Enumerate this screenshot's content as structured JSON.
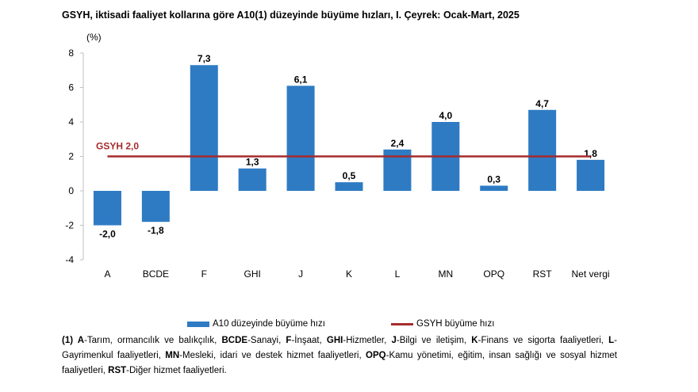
{
  "title": "GSYH, iktisadi faaliyet kollarına göre A10(1) düzeyinde büyüme hızları, I. Çeyrek: Ocak-Mart, 2025",
  "colors": {
    "bar": "#2e7bc4",
    "reference_line": "#a62b2b",
    "axis": "#bfbfbf"
  },
  "chart_data": {
    "type": "bar",
    "ylabel": "(%)",
    "ylim": [
      -4,
      8
    ],
    "yticks": [
      -4,
      -2,
      0,
      2,
      4,
      6,
      8
    ],
    "categories": [
      "A",
      "BCDE",
      "F",
      "GHI",
      "J",
      "K",
      "L",
      "MN",
      "OPQ",
      "RST",
      "Net vergi"
    ],
    "series": [
      {
        "name": "A10 düzeyinde büyüme hızı",
        "values": [
          -2.0,
          -1.8,
          7.3,
          1.3,
          6.1,
          0.5,
          2.4,
          4.0,
          0.3,
          4.7,
          1.8
        ],
        "labels": [
          "-2,0",
          "-1,8",
          "7,3",
          "1,3",
          "6,1",
          "0,5",
          "2,4",
          "4,0",
          "0,3",
          "4,7",
          "1,8"
        ]
      }
    ],
    "reference_line": {
      "name": "GSYH büyüme hızı",
      "value": 2.0,
      "label": "GSYH 2,0"
    },
    "grid": false,
    "legend_position": "bottom"
  },
  "legend": {
    "bar_label": "A10 düzeyinde büyüme hızı",
    "line_label": "GSYH büyüme hızı"
  },
  "footnote": {
    "prefix": "(1) ",
    "items": [
      {
        "code": "A",
        "text": "-Tarım, ormancılık ve balıkçılık, "
      },
      {
        "code": "BCDE",
        "text": "-Sanayi, "
      },
      {
        "code": "F",
        "text": "-İnşaat, "
      },
      {
        "code": "GHI",
        "text": "-Hizmetler, "
      },
      {
        "code": "J",
        "text": "-Bilgi ve iletişim, "
      },
      {
        "code": "K",
        "text": "-Finans ve sigorta faaliyetleri, "
      },
      {
        "code": "L",
        "text": "-Gayrimenkul faaliyetleri, "
      },
      {
        "code": "MN",
        "text": "-Mesleki, idari ve destek hizmet faaliyetleri, "
      },
      {
        "code": "OPQ",
        "text": "-Kamu yönetimi, eğitim, insan sağlığı ve sosyal hizmet faaliyetleri, "
      },
      {
        "code": "RST",
        "text": "-Diğer hizmet faaliyetleri."
      }
    ]
  }
}
